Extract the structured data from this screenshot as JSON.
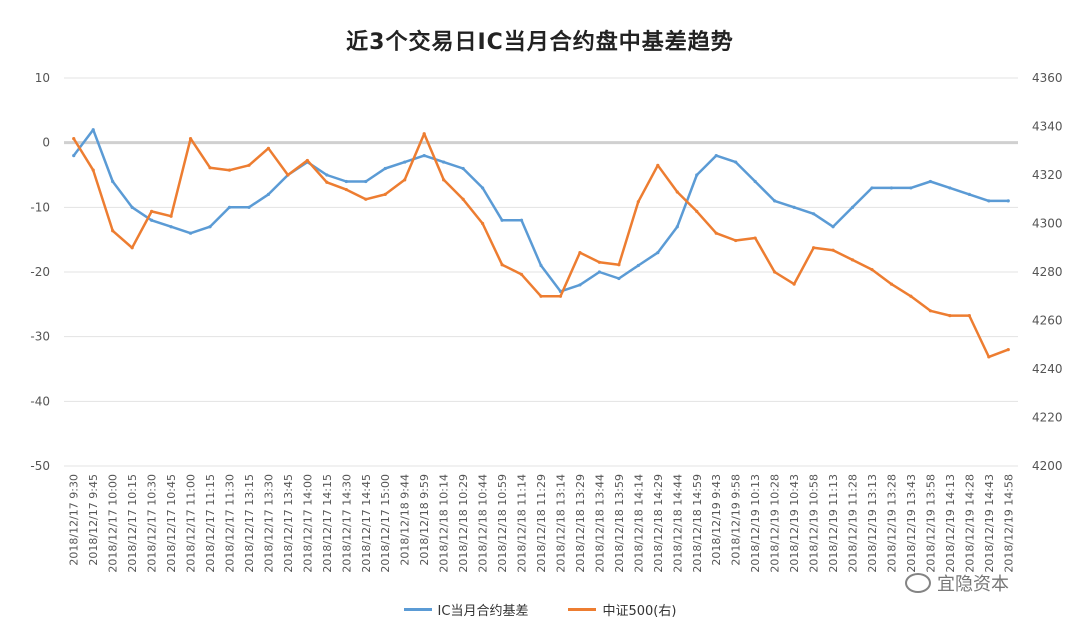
{
  "chart_data": {
    "type": "line",
    "title": "近3个交易日IC当月合约盘中基差趋势",
    "y_left": {
      "min": -50,
      "max": 10,
      "ticks": [
        "10",
        "0",
        "-10",
        "-20",
        "-30",
        "-40",
        "-50"
      ]
    },
    "y_right": {
      "min": 4200,
      "max": 4360,
      "ticks": [
        "4360",
        "4340",
        "4320",
        "4300",
        "4280",
        "4260",
        "4240",
        "4220",
        "4200"
      ]
    },
    "x_tick_labels": [
      "2018/12/17 9:30",
      "2018/12/17 9:45",
      "2018/12/17 10:00",
      "2018/12/17 10:15",
      "2018/12/17 10:30",
      "2018/12/17 10:45",
      "2018/12/17 11:00",
      "2018/12/17 11:15",
      "2018/12/17 11:30",
      "2018/12/17 13:15",
      "2018/12/17 13:30",
      "2018/12/17 13:45",
      "2018/12/17 14:00",
      "2018/12/17 14:15",
      "2018/12/17 14:30",
      "2018/12/17 14:45",
      "2018/12/17 15:00",
      "2018/12/18 9:44",
      "2018/12/18 9:59",
      "2018/12/18 10:14",
      "2018/12/18 10:29",
      "2018/12/18 10:44",
      "2018/12/18 10:59",
      "2018/12/18 11:14",
      "2018/12/18 11:29",
      "2018/12/18 13:14",
      "2018/12/18 13:29",
      "2018/12/18 13:44",
      "2018/12/18 13:59",
      "2018/12/18 14:14",
      "2018/12/18 14:29",
      "2018/12/18 14:44",
      "2018/12/18 14:59",
      "2018/12/19 9:43",
      "2018/12/19 9:58",
      "2018/12/19 10:13",
      "2018/12/19 10:28",
      "2018/12/19 10:43",
      "2018/12/19 10:58",
      "2018/12/19 11:13",
      "2018/12/19 11:28",
      "2018/12/19 13:13",
      "2018/12/19 13:28",
      "2018/12/19 13:43",
      "2018/12/19 13:58",
      "2018/12/19 14:13",
      "2018/12/19 14:28",
      "2018/12/19 14:43",
      "2018/12/19 14:58"
    ],
    "series": [
      {
        "name": "IC当月合约基差",
        "axis": "left",
        "color": "#5B9BD5",
        "values": [
          -2,
          2,
          -6,
          -10,
          -12,
          -13,
          -14,
          -13,
          -10,
          -10,
          -8,
          -5,
          -3,
          -5,
          -6,
          -6,
          -4,
          -3,
          -2,
          -3,
          -4,
          -7,
          -12,
          -12,
          -19,
          -23,
          -22,
          -20,
          -21,
          -19,
          -17,
          -13,
          -5,
          -2,
          -3,
          -6,
          -9,
          -10,
          -11,
          -13,
          -10,
          -7,
          -7,
          -7,
          -6,
          -7,
          -8,
          -9,
          -9
        ]
      },
      {
        "name": "中证500(右)",
        "axis": "right",
        "color": "#ED7D31",
        "values": [
          4335,
          4322,
          4297,
          4290,
          4305,
          4303,
          4335,
          4323,
          4322,
          4324,
          4331,
          4320,
          4326,
          4317,
          4314,
          4310,
          4312,
          4318,
          4337,
          4318,
          4310,
          4300,
          4283,
          4279,
          4270,
          4270,
          4288,
          4284,
          4283,
          4309,
          4324,
          4313,
          4305,
          4296,
          4293,
          4294,
          4280,
          4275,
          4290,
          4289,
          4285,
          4281,
          4275,
          4270,
          4264,
          4262,
          4262,
          4245,
          4248
        ]
      }
    ],
    "grid": true,
    "zero_line": true,
    "legend": "bottom"
  },
  "watermark": {
    "text": "宜隐资本",
    "icon": "wechat-icon"
  }
}
